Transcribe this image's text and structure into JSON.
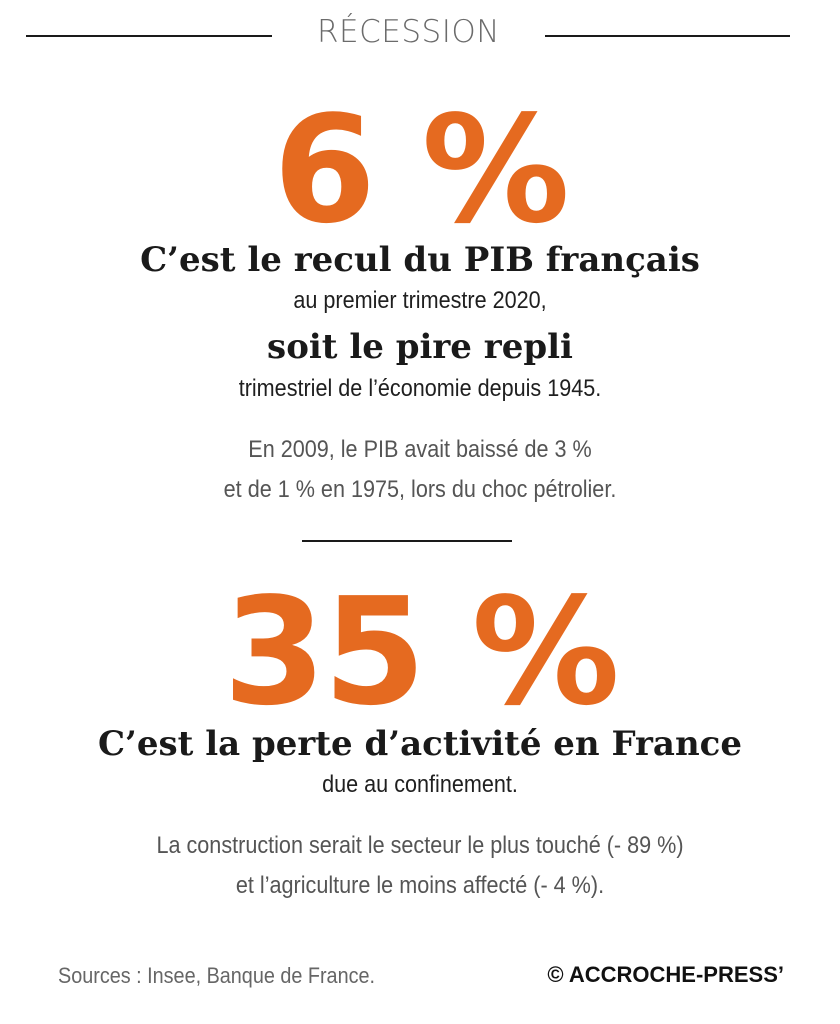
{
  "header": {
    "kicker": "RÉCESSION"
  },
  "block1": {
    "figure": "6 %",
    "headline": "C’est le recul du PIB français",
    "line1": "au premier trimestre 2020,",
    "headline2": "soit le pire repli",
    "line2": "trimestriel de l’économie depuis 1945.",
    "note_line1": "En 2009, le PIB avait baissé de 3 %",
    "note_line2": "et de 1 % en 1975, lors du choc pétrolier."
  },
  "block2": {
    "figure": "35 %",
    "headline": "C’est la perte d’activité en France",
    "line1": "due au confinement.",
    "note_line1": "La construction serait le secteur le plus touché (- 89 %)",
    "note_line2": "et l’agriculture le moins affecté (- 4 %)."
  },
  "footer": {
    "sources": "Sources : Insee, Banque de France.",
    "credit": "© ACCROCHE-PRESS’"
  },
  "colors": {
    "accent": "#e56a20",
    "text": "#1a1a1a",
    "muted": "#555555"
  }
}
